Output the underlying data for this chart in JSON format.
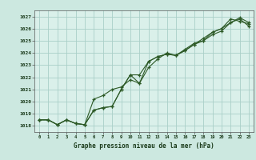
{
  "title": "Graphe pression niveau de la mer (hPa)",
  "background_color": "#cce8e0",
  "plot_bg_color": "#daf0ea",
  "grid_color": "#aacfc8",
  "line_color": "#2d5a27",
  "xlim": [
    -0.5,
    23.5
  ],
  "ylim": [
    1017.5,
    1027.5
  ],
  "yticks": [
    1018,
    1019,
    1020,
    1021,
    1022,
    1023,
    1024,
    1025,
    1026,
    1027
  ],
  "xticks": [
    0,
    1,
    2,
    3,
    4,
    5,
    6,
    7,
    8,
    9,
    10,
    11,
    12,
    13,
    14,
    15,
    16,
    17,
    18,
    19,
    20,
    21,
    22,
    23
  ],
  "series": [
    [
      1018.5,
      1018.5,
      1018.1,
      1018.5,
      1018.2,
      1018.1,
      1019.3,
      1019.5,
      1019.6,
      1021.0,
      1022.2,
      1021.5,
      1023.3,
      1023.7,
      1023.9,
      1023.8,
      1024.2,
      1024.7,
      1025.0,
      1025.7,
      1026.0,
      1026.8,
      1026.6,
      1026.4
    ],
    [
      1018.5,
      1018.5,
      1018.1,
      1018.5,
      1018.2,
      1018.1,
      1020.2,
      1020.5,
      1021.0,
      1021.2,
      1021.8,
      1021.5,
      1022.8,
      1023.5,
      1024.0,
      1023.8,
      1024.3,
      1024.8,
      1025.0,
      1025.5,
      1025.8,
      1026.5,
      1026.9,
      1026.5
    ],
    [
      1018.5,
      1018.5,
      1018.1,
      1018.5,
      1018.2,
      1018.1,
      1019.3,
      1019.5,
      1019.6,
      1021.0,
      1022.2,
      1022.2,
      1023.3,
      1023.7,
      1023.9,
      1023.8,
      1024.2,
      1024.7,
      1025.2,
      1025.7,
      1026.0,
      1026.5,
      1026.8,
      1026.2
    ]
  ]
}
